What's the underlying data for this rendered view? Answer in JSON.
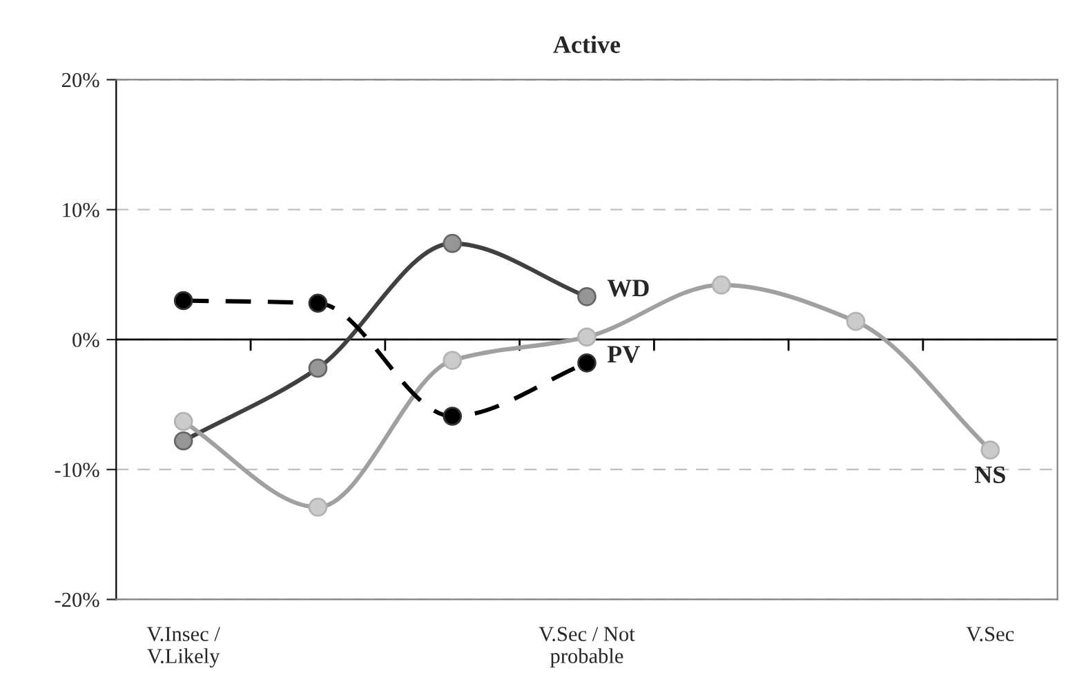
{
  "chart_data": {
    "type": "line",
    "title": "Active",
    "categories": [
      "V.Insec /\nV.Likely",
      null,
      null,
      "V.Sec / Not\nprobable",
      null,
      null,
      "V.Sec"
    ],
    "series": [
      {
        "name": "WD",
        "color": "#404040",
        "values": [
          -7.8,
          -2.2,
          7.4,
          3.3,
          null,
          null,
          null
        ]
      },
      {
        "name": "NS",
        "color": "#a0a0a0",
        "values": [
          -6.3,
          -12.9,
          -1.6,
          0.2,
          4.2,
          1.4,
          -8.5
        ]
      },
      {
        "name": "PV",
        "color": "#000000",
        "line_style": "dashed",
        "values": [
          3.0,
          2.8,
          -5.9,
          -1.8,
          null,
          null,
          null
        ]
      }
    ],
    "ylim": [
      -20,
      20
    ],
    "yticks": [
      {
        "value": -20,
        "label": "-20%"
      },
      {
        "value": -10,
        "label": "-10%"
      },
      {
        "value": 0,
        "label": "0%"
      },
      {
        "value": 10,
        "label": "10%"
      },
      {
        "value": 20,
        "label": "20%"
      }
    ],
    "ref_lines": [
      {
        "axis": "y",
        "value": 0,
        "color": "#000000"
      }
    ],
    "grid": "y",
    "marker": "circle",
    "line_style": "solid"
  }
}
